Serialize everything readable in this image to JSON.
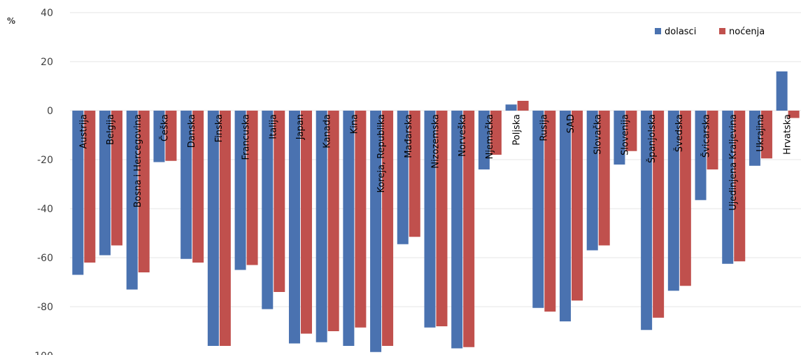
{
  "chart_data": {
    "type": "bar",
    "ylabel": "%",
    "ylim": [
      -100,
      40
    ],
    "yticks": [
      "40",
      "20",
      "0",
      "-20",
      "-40",
      "-60",
      "-80",
      "-100"
    ],
    "legend_position": "top-right",
    "grid": true,
    "categories": [
      "Austrija",
      "Belgija",
      "Bosna i Hercegovina",
      "Češka",
      "Danska",
      "Finska",
      "Francuska",
      "Italija",
      "Japan",
      "Kanada",
      "Kina",
      "Koreja, Republika",
      "Mađarska",
      "Nizozemska",
      "Norveška",
      "Njemačka",
      "Poljska",
      "Rusija",
      "SAD",
      "Slovačka",
      "Slovenija",
      "Španjolska",
      "Švedska",
      "Švicarska",
      "Ujedinjena Kraljevina",
      "Ukrajina",
      "Hrvatska"
    ],
    "series": [
      {
        "name": "dolasci",
        "color": "#4a72b0",
        "values": [
          -67,
          -59,
          -73,
          -21,
          -60.5,
          -96,
          -65,
          -81,
          -95,
          -94.5,
          -96,
          -98.5,
          -54.5,
          -88.5,
          -97,
          -24,
          2.5,
          -80.5,
          -86,
          -57,
          -22,
          -89.5,
          -73.5,
          -36.5,
          -62.5,
          -22.5,
          16
        ]
      },
      {
        "name": "noćenja",
        "color": "#c0504d",
        "values": [
          -62,
          -55,
          -66,
          -20.5,
          -62,
          -96,
          -63,
          -74,
          -91,
          -90,
          -88.5,
          -96,
          -51.5,
          -88,
          -96.5,
          -18,
          4,
          -82,
          -77.5,
          -55,
          -16.5,
          -84.5,
          -71.5,
          -24,
          -61.5,
          -19.5,
          -3
        ]
      }
    ]
  }
}
